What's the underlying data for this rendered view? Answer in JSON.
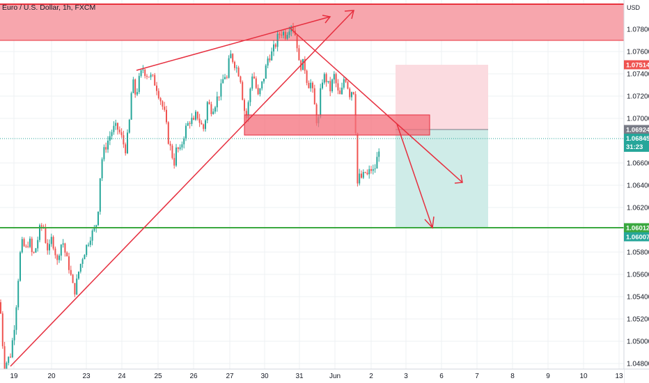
{
  "title": "Euro / U.S. Dollar, 1h, FXCM",
  "currency": "USD",
  "colors": {
    "up": "#26a69a",
    "down": "#ef5350",
    "resistance_zone": "#f7a1a9",
    "resistance_line": "#e8323c",
    "support_line": "#3aa83f",
    "trend": "#e62e3e",
    "target_zone": "#cfece8",
    "stop_zone": "#fbdbe0",
    "grid": "#eef0f3"
  },
  "chart_data": {
    "type": "candlestick",
    "x_ticks": [
      "19",
      "20",
      "23",
      "24",
      "25",
      "26",
      "27",
      "30",
      "31",
      "Jun",
      "2",
      "3",
      "6",
      "7",
      "8",
      "9",
      "10",
      "13"
    ],
    "y_ticks": [
      "1.07800",
      "1.07600",
      "1.07400",
      "1.07200",
      "1.07000",
      "1.06600",
      "1.06400",
      "1.06200",
      "1.05800",
      "1.05600",
      "1.05400",
      "1.05200",
      "1.05000",
      "1.04800"
    ],
    "ylim": [
      1.0475,
      1.0805
    ],
    "price_path": [
      [
        0,
        1.0535
      ],
      [
        3,
        1.0505
      ],
      [
        6,
        1.0478
      ],
      [
        10,
        1.0482
      ],
      [
        15,
        1.0488
      ],
      [
        20,
        1.051
      ],
      [
        25,
        1.0545
      ],
      [
        28,
        1.0575
      ],
      [
        32,
        1.0588
      ],
      [
        37,
        1.0582
      ],
      [
        42,
        1.0592
      ],
      [
        47,
        1.0575
      ],
      [
        52,
        1.0585
      ],
      [
        57,
        1.06
      ],
      [
        62,
        1.0605
      ],
      [
        66,
        1.0588
      ],
      [
        70,
        1.058
      ],
      [
        74,
        1.0592
      ],
      [
        78,
        1.0585
      ],
      [
        82,
        1.057
      ],
      [
        86,
        1.0585
      ],
      [
        90,
        1.059
      ],
      [
        95,
        1.0575
      ],
      [
        100,
        1.0565
      ],
      [
        104,
        1.055
      ],
      [
        108,
        1.0545
      ],
      [
        112,
        1.056
      ],
      [
        118,
        1.0575
      ],
      [
        124,
        1.0585
      ],
      [
        130,
        1.0595
      ],
      [
        136,
        1.06
      ],
      [
        140,
        1.061
      ],
      [
        145,
        1.066
      ],
      [
        150,
        1.0672
      ],
      [
        155,
        1.068
      ],
      [
        160,
        1.0688
      ],
      [
        165,
        1.0692
      ],
      [
        170,
        1.069
      ],
      [
        175,
        1.0682
      ],
      [
        180,
        1.0672
      ],
      [
        185,
        1.069
      ],
      [
        190,
        1.0735
      ],
      [
        195,
        1.072
      ],
      [
        200,
        1.0735
      ],
      [
        205,
        1.0745
      ],
      [
        210,
        1.074
      ],
      [
        215,
        1.0738
      ],
      [
        220,
        1.0735
      ],
      [
        225,
        1.0728
      ],
      [
        230,
        1.0718
      ],
      [
        236,
        1.0705
      ],
      [
        242,
        1.068
      ],
      [
        246,
        1.067
      ],
      [
        250,
        1.066
      ],
      [
        254,
        1.0675
      ],
      [
        258,
        1.0668
      ],
      [
        262,
        1.068
      ],
      [
        266,
        1.069
      ],
      [
        270,
        1.0695
      ],
      [
        274,
        1.07
      ],
      [
        278,
        1.0695
      ],
      [
        282,
        1.0705
      ],
      [
        288,
        1.0695
      ],
      [
        293,
        1.069
      ],
      [
        298,
        1.0715
      ],
      [
        303,
        1.0708
      ],
      [
        308,
        1.0712
      ],
      [
        313,
        1.072
      ],
      [
        318,
        1.0728
      ],
      [
        322,
        1.074
      ],
      [
        326,
        1.0735
      ],
      [
        330,
        1.0758
      ],
      [
        335,
        1.0752
      ],
      [
        340,
        1.0745
      ],
      [
        345,
        1.0738
      ],
      [
        350,
        1.071
      ],
      [
        354,
        1.07
      ],
      [
        358,
        1.072
      ],
      [
        362,
        1.074
      ],
      [
        366,
        1.0735
      ],
      [
        370,
        1.0718
      ],
      [
        375,
        1.0728
      ],
      [
        380,
        1.074
      ],
      [
        385,
        1.0755
      ],
      [
        390,
        1.0758
      ],
      [
        395,
        1.0765
      ],
      [
        400,
        1.0775
      ],
      [
        405,
        1.0778
      ],
      [
        410,
        1.0775
      ],
      [
        415,
        1.0782
      ],
      [
        418,
        1.0785
      ],
      [
        422,
        1.078
      ],
      [
        426,
        1.077
      ],
      [
        430,
        1.0745
      ],
      [
        434,
        1.075
      ],
      [
        438,
        1.0745
      ],
      [
        442,
        1.073
      ],
      [
        446,
        1.0732
      ],
      [
        450,
        1.072
      ],
      [
        454,
        1.07
      ],
      [
        457,
        1.0695
      ],
      [
        460,
        1.0722
      ],
      [
        463,
        1.0735
      ],
      [
        467,
        1.0738
      ],
      [
        471,
        1.073
      ],
      [
        475,
        1.0725
      ],
      [
        479,
        1.074
      ],
      [
        483,
        1.073
      ],
      [
        487,
        1.0718
      ],
      [
        491,
        1.0725
      ],
      [
        495,
        1.074
      ],
      [
        499,
        1.073
      ],
      [
        503,
        1.072
      ],
      [
        507,
        1.073
      ],
      [
        510,
        1.071
      ],
      [
        512,
        1.0645
      ],
      [
        514,
        1.064
      ],
      [
        517,
        1.065
      ],
      [
        520,
        1.0645
      ],
      [
        524,
        1.0652
      ],
      [
        528,
        1.0648
      ],
      [
        532,
        1.0655
      ],
      [
        536,
        1.0652
      ],
      [
        540,
        1.0658
      ],
      [
        543,
        1.067
      ],
      [
        547,
        1.0683
      ]
    ],
    "horizontal_lines": [
      {
        "price": 1.0802,
        "color": "#e8323c"
      },
      {
        "price": 1.06,
        "color": "#3aa83f"
      }
    ],
    "price_badges": [
      {
        "label": "1.07514",
        "price": 1.07514,
        "color": "#ef5350"
      },
      {
        "label": "1.06924",
        "price": 1.06924,
        "color": "#787b86"
      },
      {
        "label": "1.06845",
        "price": 1.06845,
        "color": "#26a69a",
        "sub": "31:23"
      },
      {
        "label": "1.06012",
        "price": 1.06012,
        "color": "#3aa83f"
      },
      {
        "label": "1.06007",
        "price": 1.06007,
        "color": "#26a69a"
      }
    ]
  }
}
